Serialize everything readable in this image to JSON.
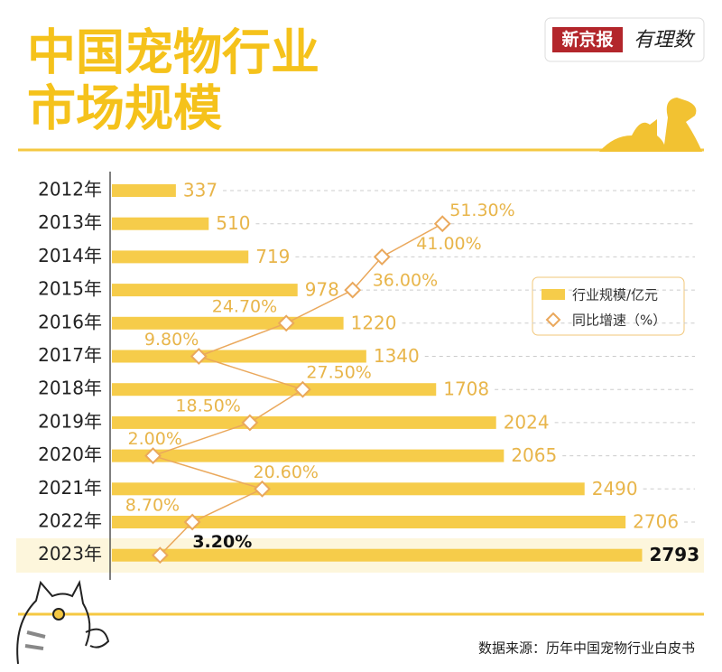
{
  "header": {
    "title_lines": [
      "中国宠物行业",
      "市场规模"
    ],
    "logo": [
      "新京报",
      "有理数"
    ]
  },
  "chart_data": {
    "type": "bar",
    "orientation": "horizontal",
    "categories": [
      "2012年",
      "2013年",
      "2014年",
      "2015年",
      "2016年",
      "2017年",
      "2018年",
      "2019年",
      "2020年",
      "2021年",
      "2022年",
      "2023年"
    ],
    "series": [
      {
        "name": "行业规模/亿元",
        "color": "#f6cc4a",
        "values": [
          337,
          510,
          719,
          978,
          1220,
          1340,
          1708,
          2024,
          2065,
          2490,
          2706,
          2793
        ]
      },
      {
        "name": "同比增速（%）",
        "type": "line",
        "axis": "x2",
        "color": "#eaa85c",
        "values": [
          null,
          51.3,
          41.0,
          36.0,
          24.7,
          9.8,
          27.5,
          18.5,
          2.0,
          20.6,
          8.7,
          3.2
        ],
        "value_labels": [
          null,
          "51.30%",
          "41.00%",
          "36.00%",
          "24.70%",
          "9.80%",
          "27.50%",
          "18.50%",
          "2.00%",
          "20.60%",
          "8.70%",
          "3.20%"
        ]
      }
    ],
    "xlim": [
      0,
      3000
    ],
    "x2lim": [
      -5,
      92
    ],
    "legend": "right"
  },
  "footer": {
    "source": "数据来源：历年中国宠物行业白皮书"
  }
}
